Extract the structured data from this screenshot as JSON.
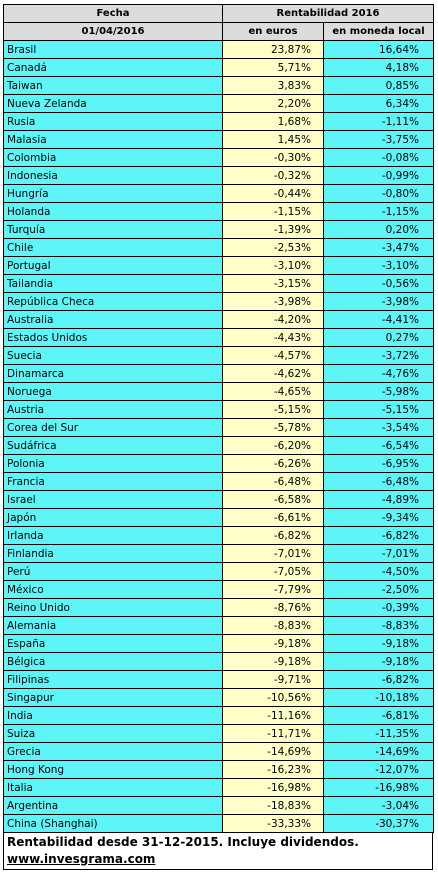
{
  "table": {
    "header": {
      "label": "Fecha",
      "date": "01/04/2016",
      "group": "Rentabilidad 2016",
      "columns": [
        "en euros",
        "en moneda local"
      ]
    },
    "rows": [
      [
        "Brasil",
        "23,87%",
        "16,64%"
      ],
      [
        "Canadá",
        "5,71%",
        "4,18%"
      ],
      [
        "Taiwan",
        "3,83%",
        "0,85%"
      ],
      [
        "Nueva Zelanda",
        "2,20%",
        "6,34%"
      ],
      [
        "Rusia",
        "1,68%",
        "-1,11%"
      ],
      [
        "Malasia",
        "1,45%",
        "-3,75%"
      ],
      [
        "Colombia",
        "-0,30%",
        "-0,08%"
      ],
      [
        "Indonesia",
        "-0,32%",
        "-0,99%"
      ],
      [
        "Hungría",
        "-0,44%",
        "-0,80%"
      ],
      [
        "Holanda",
        "-1,15%",
        "-1,15%"
      ],
      [
        "Turquía",
        "-1,39%",
        "0,20%"
      ],
      [
        "Chile",
        "-2,53%",
        "-3,47%"
      ],
      [
        "Portugal",
        "-3,10%",
        "-3,10%"
      ],
      [
        "Tailandia",
        "-3,15%",
        "-0,56%"
      ],
      [
        "República Checa",
        "-3,98%",
        "-3,98%"
      ],
      [
        "Australia",
        "-4,20%",
        "-4,41%"
      ],
      [
        "Estados Unidos",
        "-4,43%",
        "0,27%"
      ],
      [
        "Suecia",
        "-4,57%",
        "-3,72%"
      ],
      [
        "Dinamarca",
        "-4,62%",
        "-4,76%"
      ],
      [
        "Noruega",
        "-4,65%",
        "-5,98%"
      ],
      [
        "Austria",
        "-5,15%",
        "-5,15%"
      ],
      [
        "Corea del Sur",
        "-5,78%",
        "-3,54%"
      ],
      [
        "Sudáfrica",
        "-6,20%",
        "-6,54%"
      ],
      [
        "Polonia",
        "-6,26%",
        "-6,95%"
      ],
      [
        "Francia",
        "-6,48%",
        "-6,48%"
      ],
      [
        "Israel",
        "-6,58%",
        "-4,89%"
      ],
      [
        "Japón",
        "-6,61%",
        "-9,34%"
      ],
      [
        "Irlanda",
        "-6,82%",
        "-6,82%"
      ],
      [
        "Finlandia",
        "-7,01%",
        "-7,01%"
      ],
      [
        "Perú",
        "-7,05%",
        "-4,50%"
      ],
      [
        "México",
        "-7,79%",
        "-2,50%"
      ],
      [
        "Reino Unido",
        "-8,76%",
        "-0,39%"
      ],
      [
        "Alemania",
        "-8,83%",
        "-8,83%"
      ],
      [
        "España",
        "-9,18%",
        "-9,18%"
      ],
      [
        "Bélgica",
        "-9,18%",
        "-9,18%"
      ],
      [
        "Filipinas",
        "-9,71%",
        "-6,82%"
      ],
      [
        "Singapur",
        "-10,56%",
        "-10,18%"
      ],
      [
        "India",
        "-11,16%",
        "-6,81%"
      ],
      [
        "Suiza",
        "-11,71%",
        "-11,35%"
      ],
      [
        "Grecia",
        "-14,69%",
        "-14,69%"
      ],
      [
        "Hong Kong",
        "-16,23%",
        "-12,07%"
      ],
      [
        "Italia",
        "-16,98%",
        "-16,98%"
      ],
      [
        "Argentina",
        "-18,83%",
        "-3,04%"
      ],
      [
        "China (Shanghai)",
        "-33,33%",
        "-30,37%"
      ]
    ]
  },
  "footer": {
    "note": "Rentabilidad desde 31-12-2015. Incluye dividendos.",
    "link": "www.invesgrama.com"
  }
}
